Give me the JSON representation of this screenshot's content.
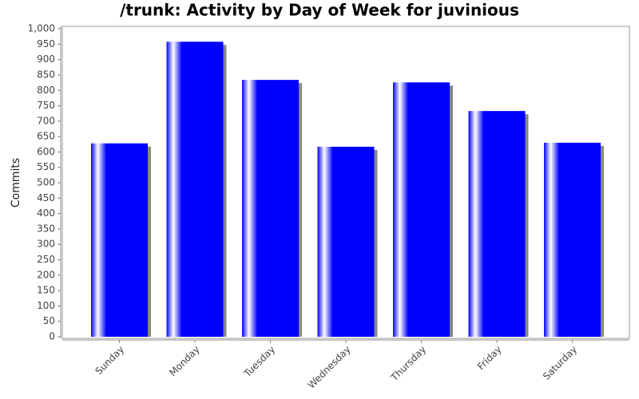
{
  "chart_data": {
    "type": "bar",
    "title": "/trunk: Activity by Day of Week for juvinious",
    "y_label": "Commits",
    "categories": [
      "Sunday",
      "Monday",
      "Tuesday",
      "Wednesday",
      "Thursday",
      "Friday",
      "Saturday"
    ],
    "values": [
      628,
      958,
      834,
      617,
      826,
      733,
      630
    ],
    "color": "#0000ff",
    "ylim": [
      0,
      1008
    ],
    "yticks": [
      0,
      50,
      100,
      150,
      200,
      250,
      300,
      350,
      400,
      450,
      500,
      550,
      600,
      650,
      700,
      750,
      800,
      850,
      900,
      950,
      {
        "value": 1000,
        "label": "1,000"
      }
    ],
    "grid": false
  }
}
